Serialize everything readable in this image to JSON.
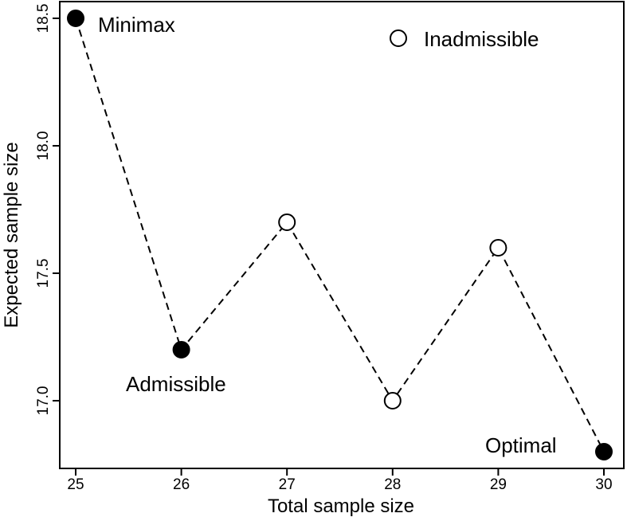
{
  "chart_data": {
    "type": "line",
    "title": "",
    "xlabel": "Total sample size",
    "ylabel": "Expected sample size",
    "xlim": [
      25,
      30
    ],
    "ylim": [
      16.8,
      18.5
    ],
    "x_ticks": [
      "25",
      "26",
      "27",
      "28",
      "29",
      "30"
    ],
    "y_ticks": [
      "17.0",
      "17.5",
      "18.0",
      "18.5"
    ],
    "grid": false,
    "line_style": "dashed",
    "points": [
      {
        "x": 25,
        "y": 18.5,
        "filled": true
      },
      {
        "x": 26,
        "y": 17.2,
        "filled": true
      },
      {
        "x": 27,
        "y": 17.7,
        "filled": false
      },
      {
        "x": 28,
        "y": 17.0,
        "filled": false
      },
      {
        "x": 29,
        "y": 17.6,
        "filled": false
      },
      {
        "x": 30,
        "y": 16.8,
        "filled": true
      }
    ],
    "annotations": [
      "Minimax",
      "Admissible",
      "Optimal"
    ],
    "legend": {
      "label": "Inadmissible",
      "marker": "open-circle",
      "placement": "top-right"
    },
    "colors": {
      "marker_fill": "#000000",
      "line": "#000000",
      "open_marker_fill": "#ffffff"
    }
  }
}
